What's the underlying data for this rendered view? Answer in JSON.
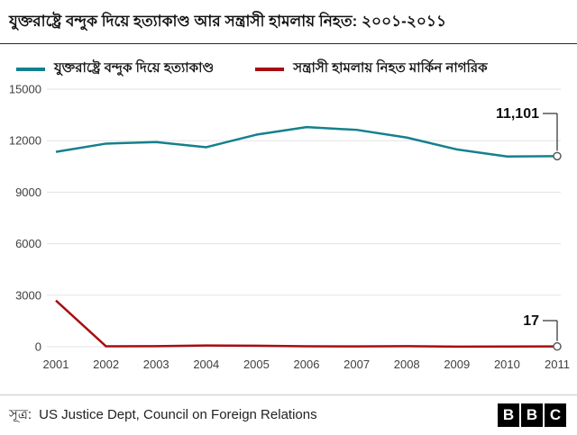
{
  "title": "যুক্তরাষ্ট্রে বন্দুক দিয়ে হত্যাকাণ্ড আর সন্ত্রাসী হামলায় নিহত: ২০০১-২০১১",
  "legend": [
    {
      "label": "যুক্তরাষ্ট্রে বন্দুক দিয়ে হত্যাকাণ্ড",
      "color": "#14808e"
    },
    {
      "label": "সন্ত্রাসী হামলায় নিহত মার্কিন নাগরিক",
      "color": "#a60d12"
    }
  ],
  "source": {
    "label": "সূত্র:",
    "text": "US Justice Dept, Council on Foreign Relations"
  },
  "logo": {
    "letters": [
      "B",
      "B",
      "C"
    ]
  },
  "chart_data": {
    "type": "line",
    "x": [
      2001,
      2002,
      2003,
      2004,
      2005,
      2006,
      2007,
      2008,
      2009,
      2010,
      2011
    ],
    "series": [
      {
        "name": "যুক্তরাষ্ট্রে বন্দুক দিয়ে হত্যাকাণ্ড",
        "color": "#14808e",
        "values": [
          11350,
          11830,
          11920,
          11620,
          12350,
          12790,
          12630,
          12180,
          11490,
          11080,
          11101
        ],
        "end_label": "11,101"
      },
      {
        "name": "সন্ত্রাসী হামলায় নিহত মার্কিন নাগরিক",
        "color": "#a60d12",
        "values": [
          2690,
          25,
          35,
          74,
          56,
          28,
          19,
          33,
          9,
          15,
          17
        ],
        "end_label": "17"
      }
    ],
    "ylim": [
      0,
      15000
    ],
    "yticks": [
      0,
      3000,
      6000,
      9000,
      12000,
      15000
    ],
    "grid": true,
    "legend_position": "top",
    "xlabel": "",
    "ylabel": ""
  }
}
